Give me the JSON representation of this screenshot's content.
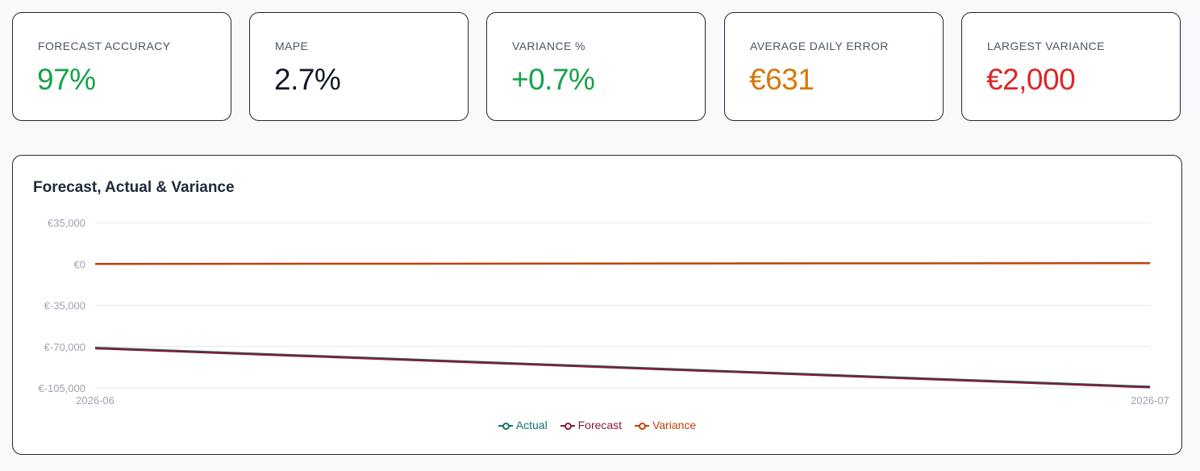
{
  "kpis": [
    {
      "label": "FORECAST ACCURACY",
      "value": "97%",
      "color": "#16a34a"
    },
    {
      "label": "MAPE",
      "value": "2.7%",
      "color": "#111827"
    },
    {
      "label": "VARIANCE %",
      "value": "+0.7%",
      "color": "#16a34a"
    },
    {
      "label": "AVERAGE DAILY ERROR",
      "value": "€631",
      "color": "#d97706"
    },
    {
      "label": "LARGEST VARIANCE",
      "value": "€2,000",
      "color": "#dc2626"
    }
  ],
  "chart_data": {
    "type": "line",
    "title": "Forecast, Actual & Variance",
    "x": [
      "2026-06",
      "2026-07"
    ],
    "y_ticks": [
      "€35,000",
      "€0",
      "€-35,000",
      "€-70,000",
      "€-105,000"
    ],
    "y_tick_values": [
      35000,
      0,
      -35000,
      -70000,
      -105000
    ],
    "ylim": [
      -105000,
      35000
    ],
    "grid": true,
    "legend_position": "bottom",
    "series": [
      {
        "name": "Actual",
        "color": "#0f766e",
        "values": [
          -71000,
          -104000
        ]
      },
      {
        "name": "Forecast",
        "color": "#7f1d3a",
        "values": [
          -71500,
          -104500
        ]
      },
      {
        "name": "Variance",
        "color": "#c2410c",
        "values": [
          0,
          700
        ]
      }
    ],
    "legend_text_colors": [
      "#0f766e",
      "#7f1d3a",
      "#c2410c"
    ]
  }
}
